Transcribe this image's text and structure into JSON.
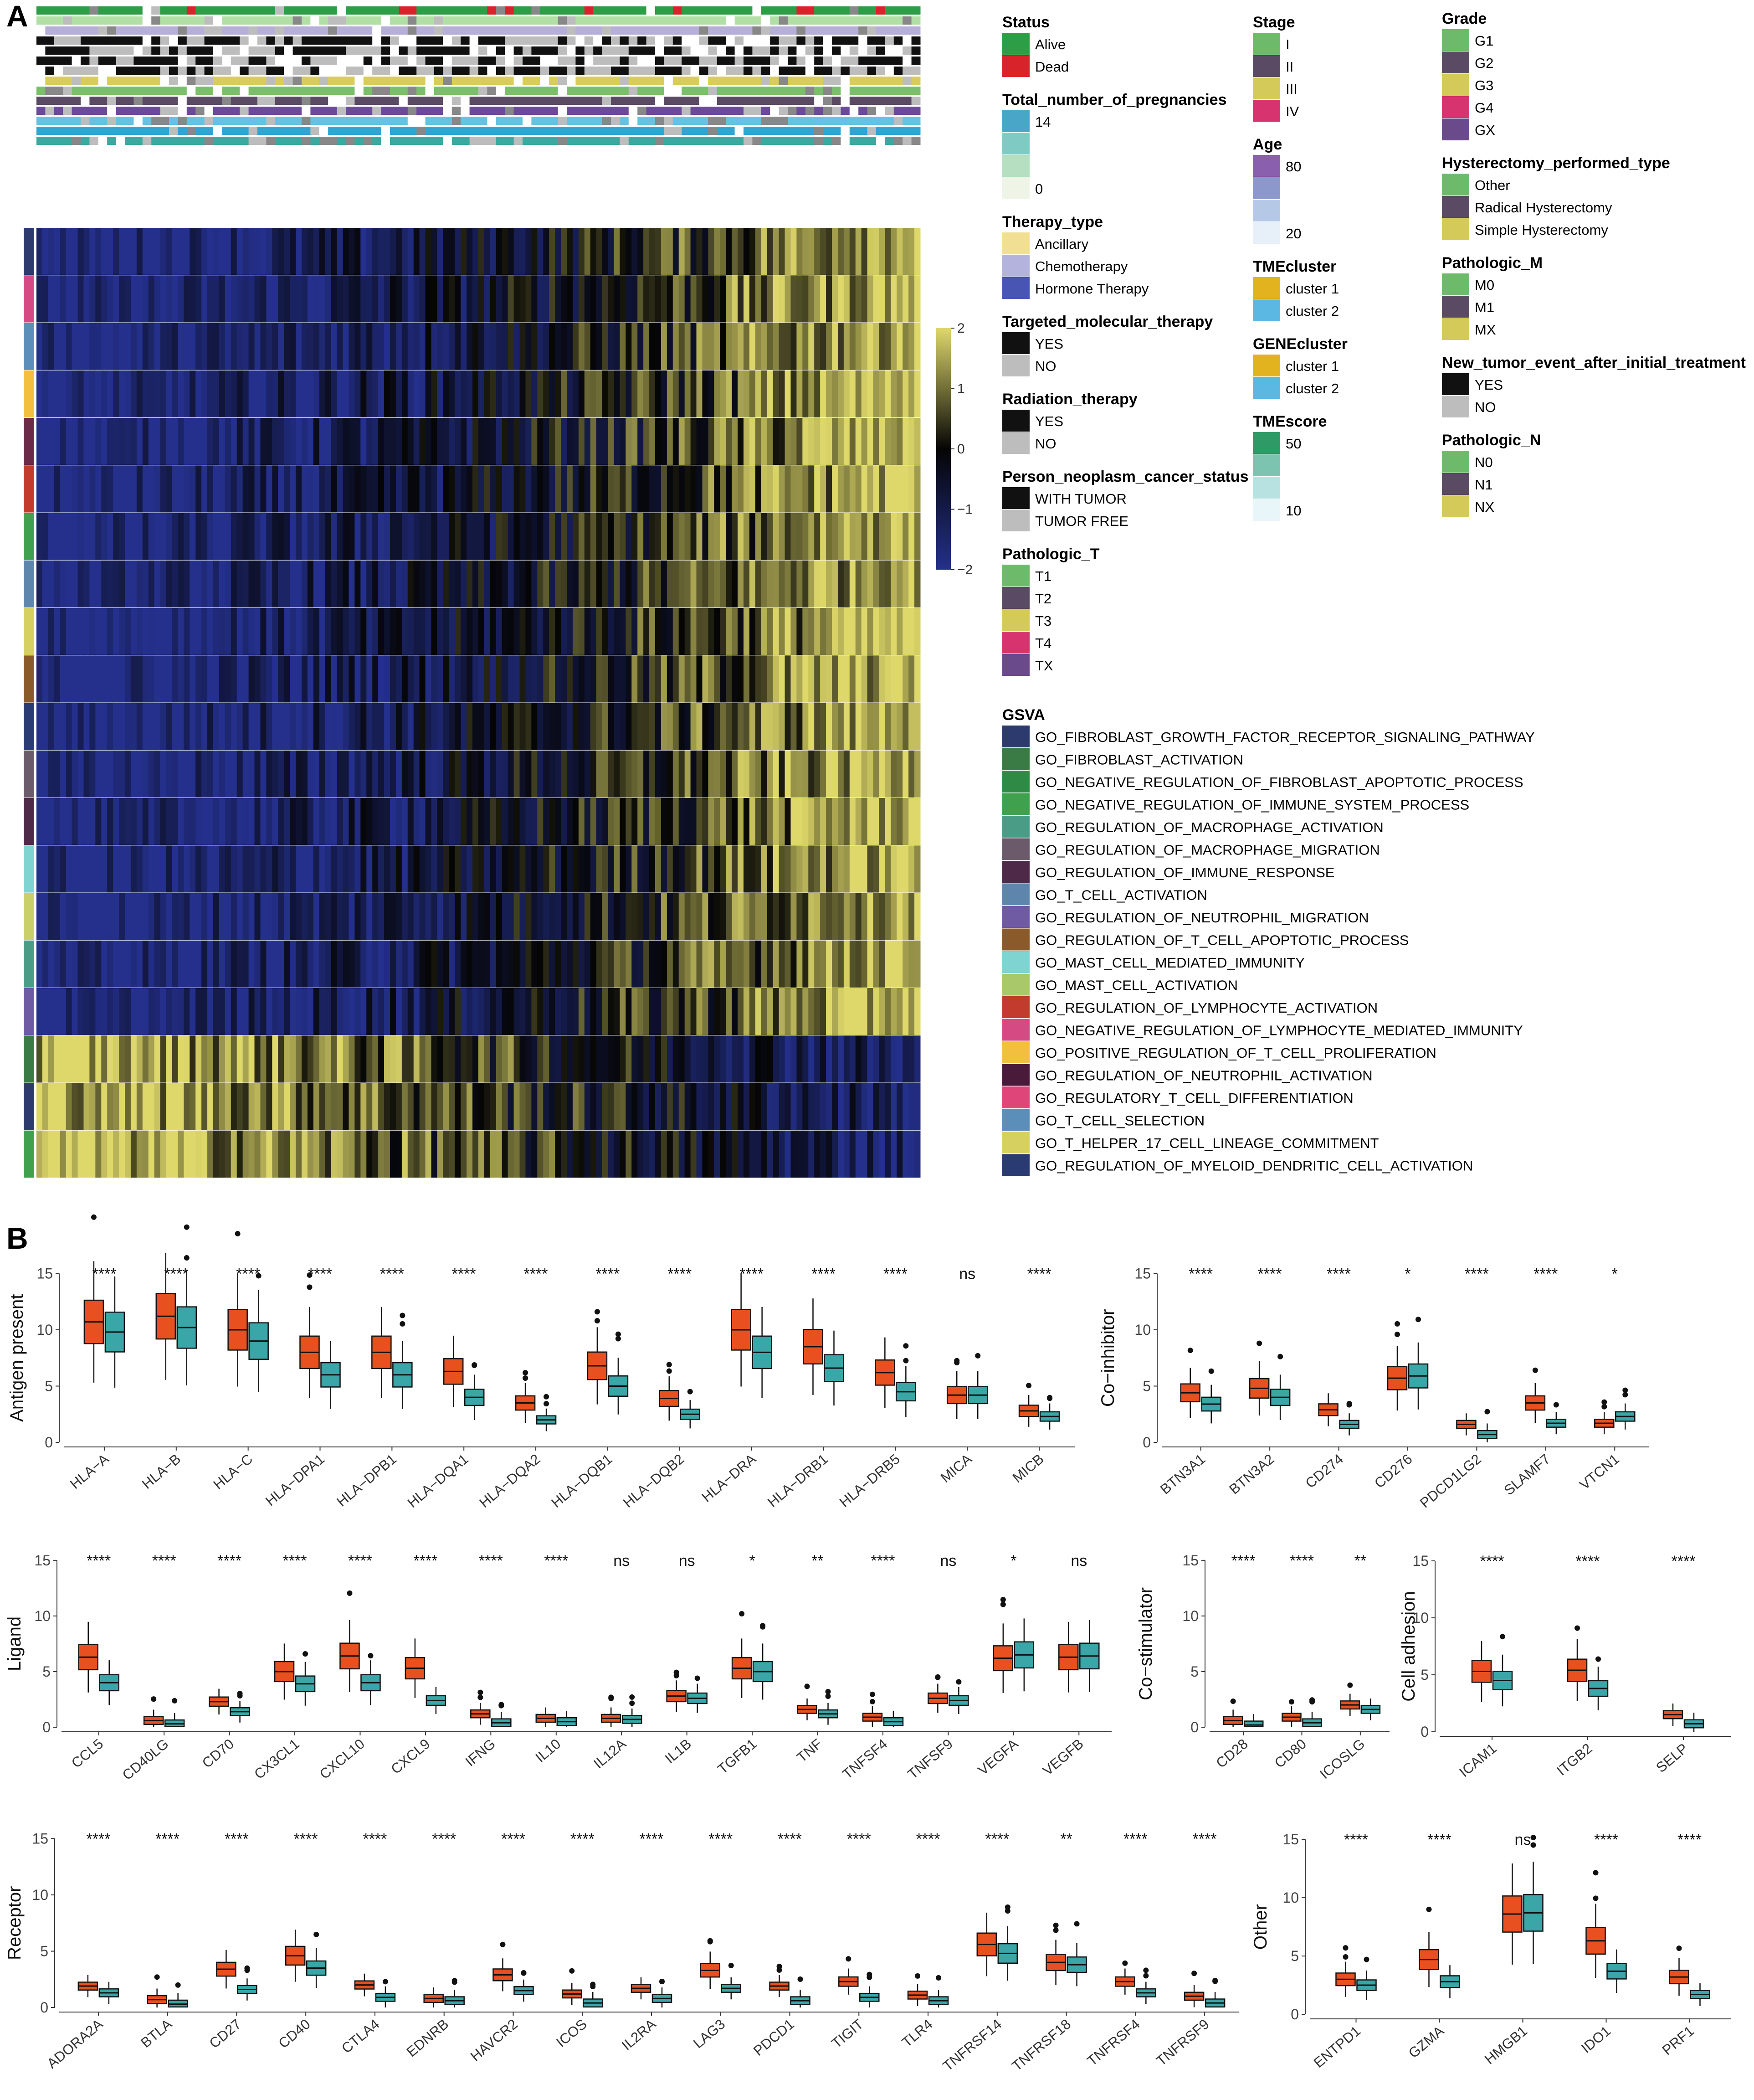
{
  "panels": {
    "a": "A",
    "b": "B"
  },
  "colors": {
    "group1": "#E8501F",
    "group2": "#3AA6A8"
  },
  "heatmap": {
    "colorbar": {
      "ticks": [
        "2",
        "1",
        "0",
        "−1",
        "−2"
      ],
      "low": "#24308c",
      "mid": "#050505",
      "high": "#ded86a"
    },
    "annotation_colors": [
      "#2e9e46",
      "#b2dfa6",
      "#b6b0d8",
      "#111111",
      "#111111",
      "#111111",
      "#111111",
      "#d8cc5a",
      "#7bbf6a",
      "#5b4a63",
      "#6b4a9a",
      "#66c2e2",
      "#2fa5d6",
      "#3ca8a0"
    ],
    "row_colors": [
      "#2d3a6e",
      "#d64a83",
      "#5b8fba",
      "#f2bf3f",
      "#6b2a47",
      "#c23b2d",
      "#3fa14e",
      "#5e86ad",
      "#d6d060",
      "#8a5a2a",
      "#2a3a72",
      "#6a5a6a",
      "#4e2a48",
      "#7fd3d1",
      "#c9d06a",
      "#4b9c87",
      "#6f5aa4",
      "#3a7a45",
      "#2d3a6e",
      "#3fa14e"
    ],
    "legends": [
      {
        "title": "Status",
        "items": [
          {
            "label": "Alive",
            "color": "#2e9e46"
          },
          {
            "label": "Dead",
            "color": "#d9232a"
          }
        ]
      },
      {
        "title": "Total_number_of_pregnancies",
        "items": [
          {
            "label": "14",
            "color": "#4aa6c9"
          },
          {
            "label": "",
            "color": "#7fcbc4"
          },
          {
            "label": "",
            "color": "#b5dfc0"
          },
          {
            "label": "0",
            "color": "#eef5e6"
          }
        ]
      },
      {
        "title": "Therapy_type",
        "items": [
          {
            "label": "Ancillary",
            "color": "#f1df94"
          },
          {
            "label": "Chemotherapy",
            "color": "#b3b3dd"
          },
          {
            "label": "Hormone Therapy",
            "color": "#4855b3"
          }
        ]
      },
      {
        "title": "Targeted_molecular_therapy",
        "items": [
          {
            "label": "YES",
            "color": "#111111"
          },
          {
            "label": "NO",
            "color": "#bdbdbd"
          }
        ]
      },
      {
        "title": "Radiation_therapy",
        "items": [
          {
            "label": "YES",
            "color": "#111111"
          },
          {
            "label": "NO",
            "color": "#bdbdbd"
          }
        ]
      },
      {
        "title": "Person_neoplasm_cancer_status",
        "items": [
          {
            "label": "WITH TUMOR",
            "color": "#111111"
          },
          {
            "label": "TUMOR FREE",
            "color": "#bdbdbd"
          }
        ]
      },
      {
        "title": "Pathologic_T",
        "items": [
          {
            "label": "T1",
            "color": "#6dbb6a"
          },
          {
            "label": "T2",
            "color": "#5b4a63"
          },
          {
            "label": "T3",
            "color": "#d3ca5a"
          },
          {
            "label": "T4",
            "color": "#d6336f"
          },
          {
            "label": "TX",
            "color": "#6b4a8c"
          }
        ]
      },
      {
        "title": "Stage",
        "items": [
          {
            "label": "I",
            "color": "#6dbb6a"
          },
          {
            "label": "II",
            "color": "#5b4a63"
          },
          {
            "label": "III",
            "color": "#d3ca5a"
          },
          {
            "label": "IV",
            "color": "#d6336f"
          }
        ]
      },
      {
        "title": "Age",
        "items": [
          {
            "label": "80",
            "color": "#8a5fad"
          },
          {
            "label": "",
            "color": "#8c97cc"
          },
          {
            "label": "",
            "color": "#b5c8e6"
          },
          {
            "label": "20",
            "color": "#e7f0f9"
          }
        ]
      },
      {
        "title": "TMEcluster",
        "items": [
          {
            "label": "cluster 1",
            "color": "#e3b21f"
          },
          {
            "label": "cluster 2",
            "color": "#5bb8e3"
          }
        ]
      },
      {
        "title": "GENEcluster",
        "items": [
          {
            "label": "cluster 1",
            "color": "#e3b21f"
          },
          {
            "label": "cluster 2",
            "color": "#5bb8e3"
          }
        ]
      },
      {
        "title": "TMEscore",
        "items": [
          {
            "label": "50",
            "color": "#2e9a66"
          },
          {
            "label": "",
            "color": "#7cc4b0"
          },
          {
            "label": "",
            "color": "#b8e2e2"
          },
          {
            "label": "10",
            "color": "#e9f6f9"
          }
        ]
      },
      {
        "title": "Grade",
        "items": [
          {
            "label": "G1",
            "color": "#6dbb6a"
          },
          {
            "label": "G2",
            "color": "#5b4a63"
          },
          {
            "label": "G3",
            "color": "#d3ca5a"
          },
          {
            "label": "G4",
            "color": "#d6336f"
          },
          {
            "label": "GX",
            "color": "#6b4a8c"
          }
        ]
      },
      {
        "title": "Hysterectomy_performed_type",
        "items": [
          {
            "label": "Other",
            "color": "#6dbb6a"
          },
          {
            "label": "Radical Hysterectomy",
            "color": "#5b4a63"
          },
          {
            "label": "Simple Hysterectomy",
            "color": "#d3ca5a"
          }
        ]
      },
      {
        "title": "Pathologic_M",
        "items": [
          {
            "label": "M0",
            "color": "#6dbb6a"
          },
          {
            "label": "M1",
            "color": "#5b4a63"
          },
          {
            "label": "MX",
            "color": "#d3ca5a"
          }
        ]
      },
      {
        "title": "New_tumor_event_after_initial_treatment",
        "items": [
          {
            "label": "YES",
            "color": "#111111"
          },
          {
            "label": "NO",
            "color": "#bdbdbd"
          }
        ]
      },
      {
        "title": "Pathologic_N",
        "items": [
          {
            "label": "N0",
            "color": "#6dbb6a"
          },
          {
            "label": "N1",
            "color": "#5b4a63"
          },
          {
            "label": "NX",
            "color": "#d3ca5a"
          }
        ]
      },
      {
        "title": "GSVA",
        "items": [
          {
            "label": "GO_FIBROBLAST_GROWTH_FACTOR_RECEPTOR_SIGNALING_PATHWAY",
            "color": "#2d3a6e"
          },
          {
            "label": "GO_FIBROBLAST_ACTIVATION",
            "color": "#3a7a45"
          },
          {
            "label": "GO_NEGATIVE_REGULATION_OF_FIBROBLAST_APOPTOTIC_PROCESS",
            "color": "#2f8a45"
          },
          {
            "label": "GO_NEGATIVE_REGULATION_OF_IMMUNE_SYSTEM_PROCESS",
            "color": "#3fa14e"
          },
          {
            "label": "GO_REGULATION_OF_MACROPHAGE_ACTIVATION",
            "color": "#4b9c87"
          },
          {
            "label": "GO_REGULATION_OF_MACROPHAGE_MIGRATION",
            "color": "#6a5a6a"
          },
          {
            "label": "GO_REGULATION_OF_IMMUNE_RESPONSE",
            "color": "#4e2a48"
          },
          {
            "label": "GO_T_CELL_ACTIVATION",
            "color": "#5e86ad"
          },
          {
            "label": "GO_REGULATION_OF_NEUTROPHIL_MIGRATION",
            "color": "#6f5aa4"
          },
          {
            "label": "GO_REGULATION_OF_T_CELL_APOPTOTIC_PROCESS",
            "color": "#8a5a2a"
          },
          {
            "label": "GO_MAST_CELL_MEDIATED_IMMUNITY",
            "color": "#7fd3d1"
          },
          {
            "label": "GO_MAST_CELL_ACTIVATION",
            "color": "#a8c86a"
          },
          {
            "label": "GO_REGULATION_OF_LYMPHOCYTE_ACTIVATION",
            "color": "#c23b2d"
          },
          {
            "label": "GO_NEGATIVE_REGULATION_OF_LYMPHOCYTE_MEDIATED_IMMUNITY",
            "color": "#d64a83"
          },
          {
            "label": "GO_POSITIVE_REGULATION_OF_T_CELL_PROLIFERATION",
            "color": "#f2bf3f"
          },
          {
            "label": "GO_REGULATION_OF_NEUTROPHIL_ACTIVATION",
            "color": "#4a1a3a"
          },
          {
            "label": "GO_REGULATORY_T_CELL_DIFFERENTIATION",
            "color": "#e0457a"
          },
          {
            "label": "GO_T_CELL_SELECTION",
            "color": "#5b8fba"
          },
          {
            "label": "GO_T_HELPER_17_CELL_LINEAGE_COMMITMENT",
            "color": "#d6d060"
          },
          {
            "label": "GO_REGULATION_OF_MYELOID_DENDRITIC_CELL_ACTIVATION",
            "color": "#2a3a72"
          }
        ]
      }
    ]
  },
  "chart_data": [
    {
      "type": "box",
      "ylabel": "Antigen present",
      "ylim": [
        0,
        17
      ],
      "yticks": [
        0,
        5,
        10,
        15
      ],
      "categories": [
        "HLA−A",
        "HLA−B",
        "HLA−C",
        "HLA−DPA1",
        "HLA−DPB1",
        "HLA−DQA1",
        "HLA−DQA2",
        "HLA−DQB1",
        "HLA−DQB2",
        "HLA−DRA",
        "HLA−DRB1",
        "HLA−DRB5",
        "MICA",
        "MICB"
      ],
      "significance": [
        "****",
        "****",
        "****",
        "****",
        "****",
        "****",
        "****",
        "****",
        "****",
        "****",
        "****",
        "****",
        "ns",
        "****"
      ],
      "medians": [
        [
          10.7,
          9.8
        ],
        [
          11.2,
          10.2
        ],
        [
          10.0,
          9.0
        ],
        [
          8.0,
          6.0
        ],
        [
          8.0,
          6.0
        ],
        [
          6.3,
          4.0
        ],
        [
          3.5,
          2.0
        ],
        [
          6.8,
          5.0
        ],
        [
          3.9,
          2.5
        ],
        [
          10.0,
          8.0
        ],
        [
          8.5,
          6.6
        ],
        [
          6.2,
          4.5
        ],
        [
          4.2,
          4.2
        ],
        [
          2.8,
          2.3
        ]
      ]
    },
    {
      "type": "box",
      "ylabel": "Co−inhibitor",
      "ylim": [
        0,
        17
      ],
      "yticks": [
        0,
        5,
        10,
        15
      ],
      "categories": [
        "BTN3A1",
        "BTN3A2",
        "CD274",
        "CD276",
        "PDCD1LG2",
        "SLAMF7",
        "VTCN1"
      ],
      "significance": [
        "****",
        "****",
        "****",
        "*",
        "****",
        "****",
        "*"
      ],
      "medians": [
        [
          4.4,
          3.4
        ],
        [
          4.8,
          4.0
        ],
        [
          2.9,
          1.6
        ],
        [
          5.7,
          5.9
        ],
        [
          1.6,
          0.7
        ],
        [
          3.5,
          1.7
        ],
        [
          1.7,
          2.3
        ]
      ]
    },
    {
      "type": "box",
      "ylabel": "Ligand",
      "ylim": [
        0,
        17
      ],
      "yticks": [
        0,
        5,
        10,
        15
      ],
      "categories": [
        "CCL5",
        "CD40LG",
        "CD70",
        "CX3CL1",
        "CXCL10",
        "CXCL9",
        "IFNG",
        "IL10",
        "IL12A",
        "IL1B",
        "TGFB1",
        "TNF",
        "TNFSF4",
        "TNFSF9",
        "VEGFA",
        "VEGFB"
      ],
      "significance": [
        "****",
        "****",
        "****",
        "****",
        "****",
        "****",
        "****",
        "****",
        "ns",
        "ns",
        "*",
        "**",
        "****",
        "ns",
        "*",
        "ns"
      ],
      "medians": [
        [
          6.3,
          4.0
        ],
        [
          0.6,
          0.3
        ],
        [
          2.3,
          1.4
        ],
        [
          5.0,
          3.9
        ],
        [
          6.4,
          4.0
        ],
        [
          5.3,
          2.4
        ],
        [
          1.2,
          0.4
        ],
        [
          0.8,
          0.5
        ],
        [
          0.8,
          0.7
        ],
        [
          2.8,
          2.6
        ],
        [
          5.3,
          5.0
        ],
        [
          1.6,
          1.2
        ],
        [
          0.9,
          0.5
        ],
        [
          2.6,
          2.4
        ],
        [
          6.2,
          6.5
        ],
        [
          6.3,
          6.4
        ]
      ]
    },
    {
      "type": "box",
      "ylabel": "Co−stimulator",
      "ylim": [
        0,
        17
      ],
      "yticks": [
        0,
        5,
        10,
        15
      ],
      "categories": [
        "CD28",
        "CD80",
        "ICOSLG"
      ],
      "significance": [
        "****",
        "****",
        "**"
      ],
      "medians": [
        [
          0.6,
          0.2
        ],
        [
          0.9,
          0.4
        ],
        [
          2.0,
          1.6
        ]
      ]
    },
    {
      "type": "box",
      "ylabel": "Cell adhesion",
      "ylim": [
        0,
        17
      ],
      "yticks": [
        0,
        5,
        10,
        15
      ],
      "categories": [
        "ICAM1",
        "ITGB2",
        "SELP"
      ],
      "significance": [
        "****",
        "****",
        "****"
      ],
      "medians": [
        [
          5.3,
          4.5
        ],
        [
          5.4,
          3.8
        ],
        [
          1.5,
          0.7
        ]
      ]
    },
    {
      "type": "box",
      "ylabel": "Receptor",
      "ylim": [
        0,
        17
      ],
      "yticks": [
        0,
        5,
        10,
        15
      ],
      "categories": [
        "ADORA2A",
        "BTLA",
        "CD27",
        "CD40",
        "CTLA4",
        "EDNRB",
        "HAVCR2",
        "ICOS",
        "IL2RA",
        "LAG3",
        "PDCD1",
        "TIGIT",
        "TLR4",
        "TNFRSF14",
        "TNFRSF18",
        "TNFRSF4",
        "TNFRSF9"
      ],
      "significance": [
        "****",
        "****",
        "****",
        "****",
        "****",
        "****",
        "****",
        "****",
        "****",
        "****",
        "****",
        "****",
        "****",
        "****",
        "**",
        "****",
        "****"
      ],
      "medians": [
        [
          1.9,
          1.3
        ],
        [
          0.7,
          0.3
        ],
        [
          3.4,
          1.6
        ],
        [
          4.6,
          3.5
        ],
        [
          2.0,
          0.9
        ],
        [
          0.8,
          0.6
        ],
        [
          2.9,
          1.5
        ],
        [
          1.2,
          0.4
        ],
        [
          1.7,
          0.8
        ],
        [
          3.3,
          1.7
        ],
        [
          1.9,
          0.6
        ],
        [
          2.3,
          0.9
        ],
        [
          1.1,
          0.6
        ],
        [
          5.6,
          4.8
        ],
        [
          4.0,
          3.8
        ],
        [
          2.3,
          1.3
        ],
        [
          1.0,
          0.4
        ]
      ]
    },
    {
      "type": "box",
      "ylabel": "Other",
      "ylim": [
        0,
        17
      ],
      "yticks": [
        0,
        5,
        10,
        15
      ],
      "categories": [
        "ENTPD1",
        "GZMA",
        "HMGB1",
        "IDO1",
        "PRF1"
      ],
      "significance": [
        "****",
        "****",
        "ns",
        "****",
        "****"
      ],
      "medians": [
        [
          3.0,
          2.5
        ],
        [
          4.7,
          2.8
        ],
        [
          8.6,
          8.7
        ],
        [
          6.3,
          3.7
        ],
        [
          3.2,
          1.7
        ]
      ]
    }
  ]
}
